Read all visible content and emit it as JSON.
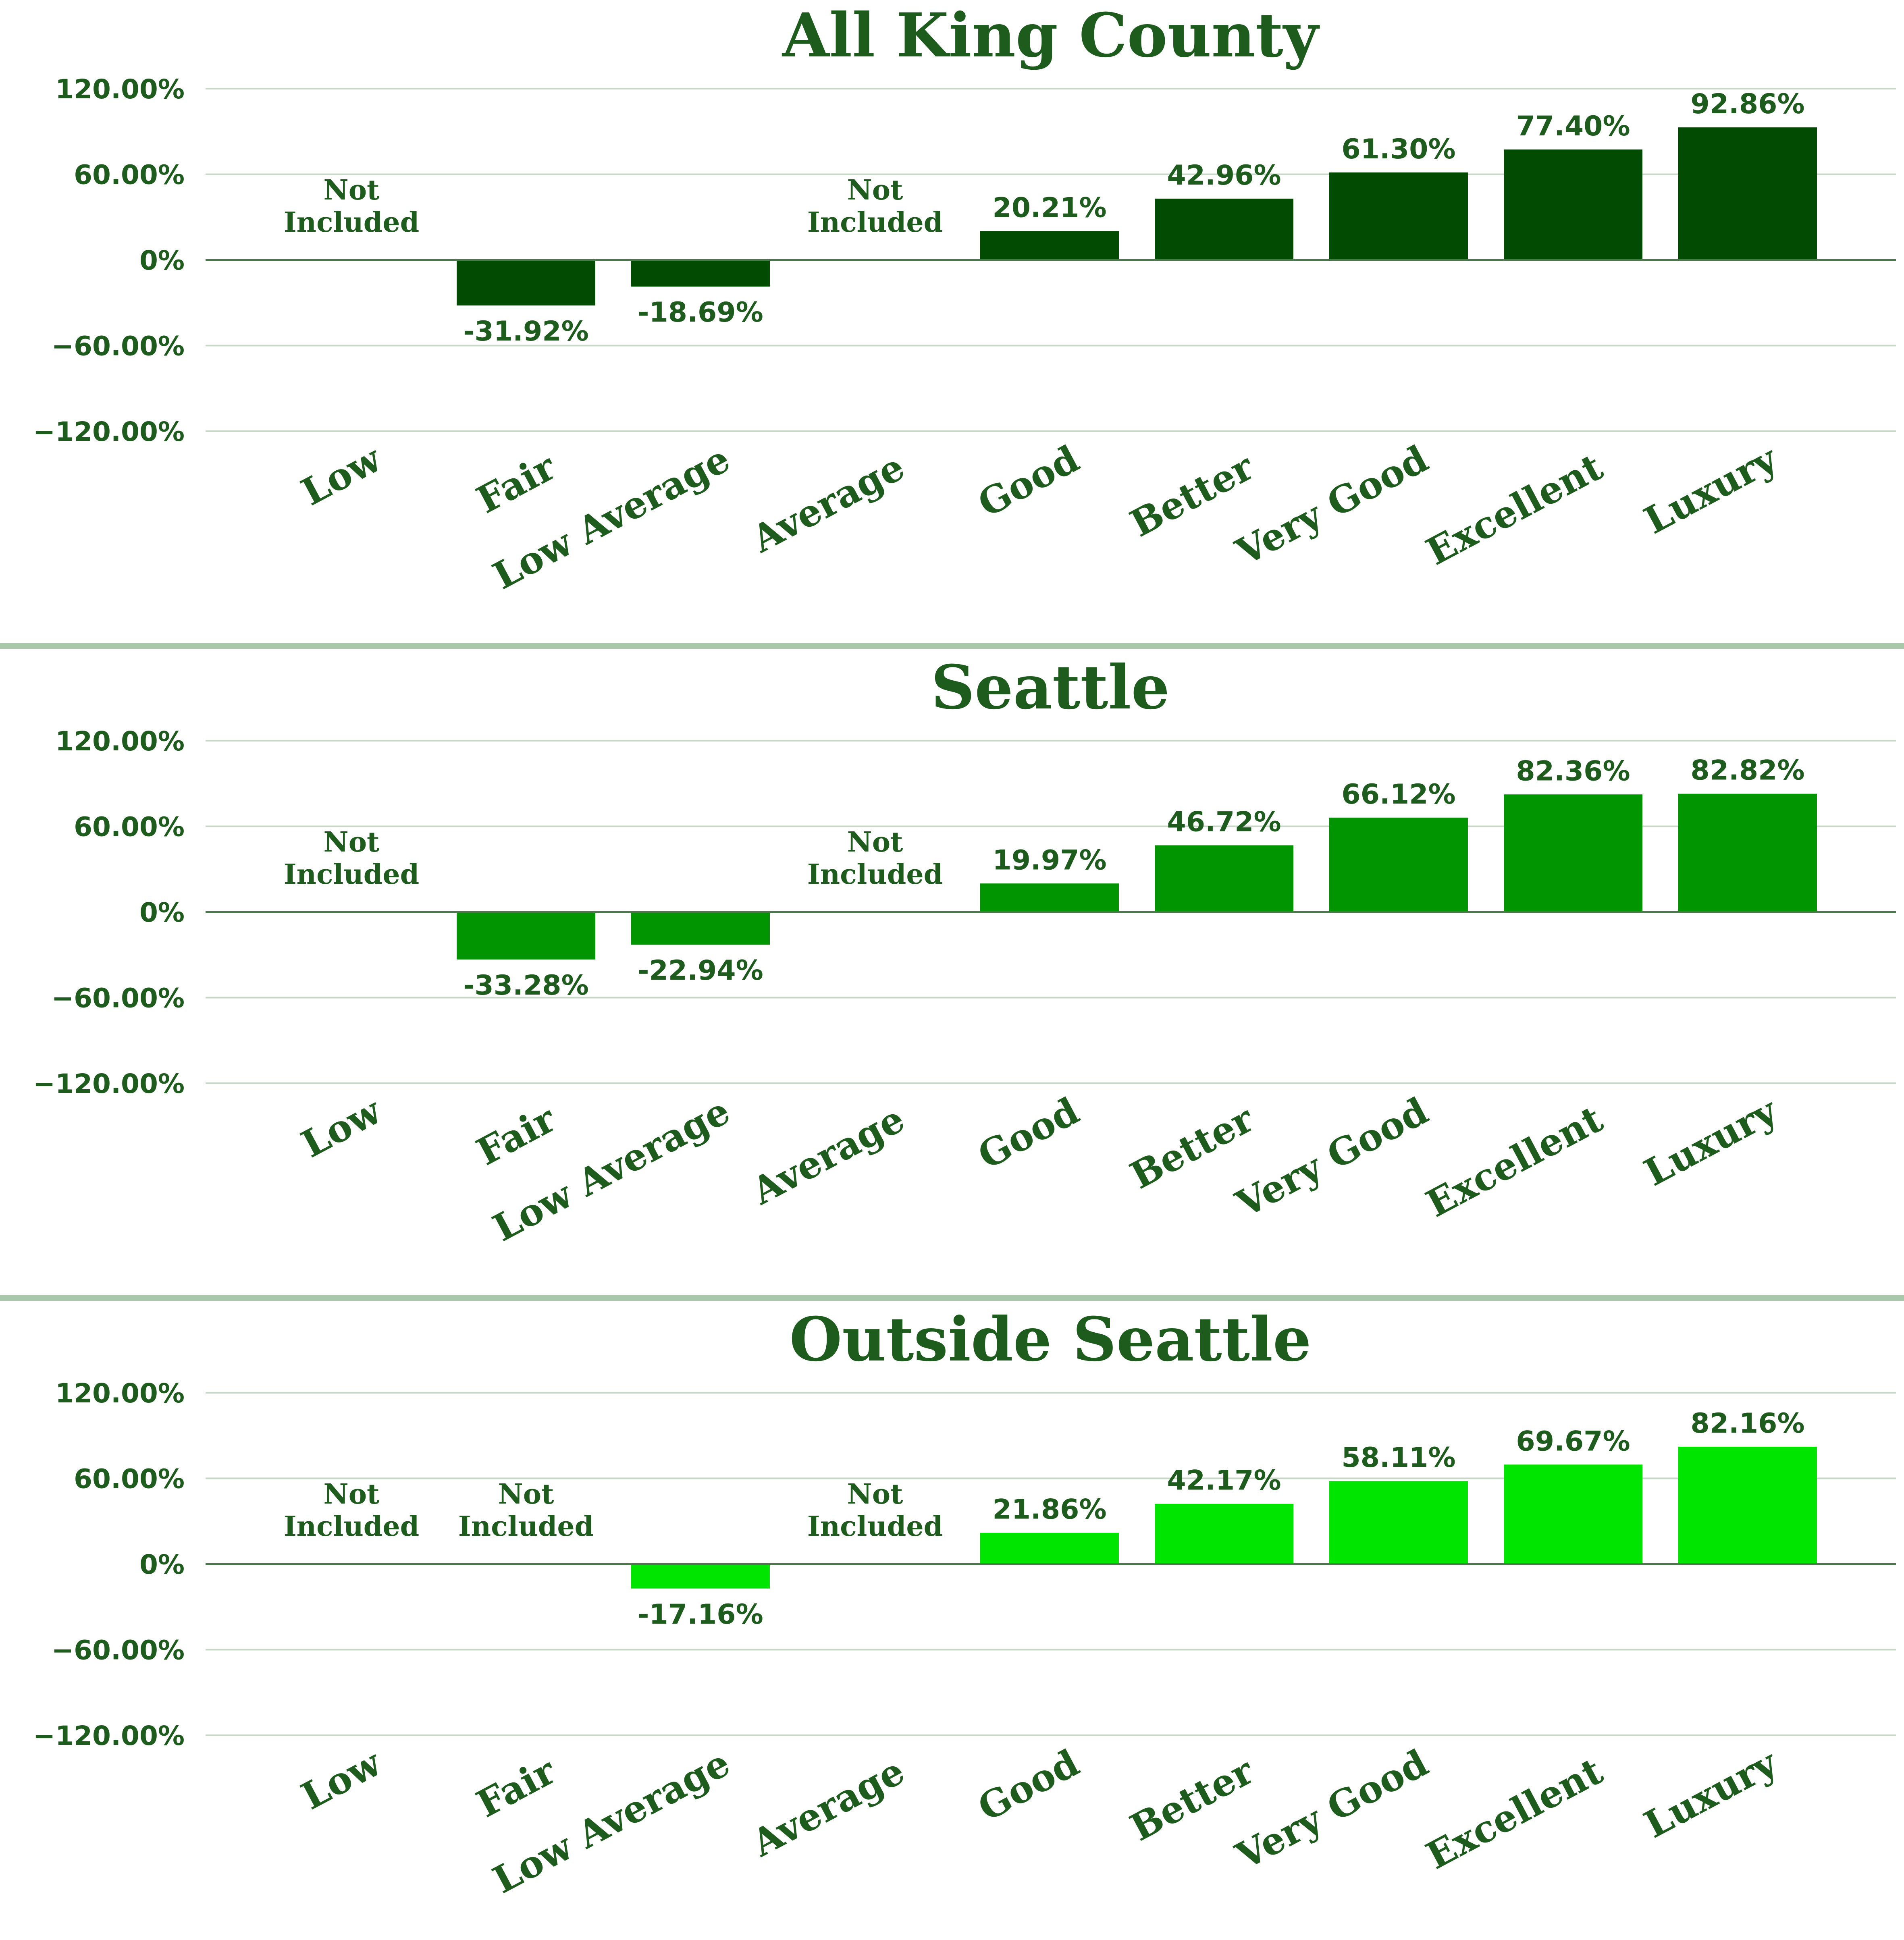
{
  "chart_data": [
    {
      "type": "bar",
      "title": "All King County",
      "categories": [
        "Low",
        "Fair",
        "Low Average",
        "Average",
        "Good",
        "Better",
        "Very Good",
        "Excellent",
        "Luxury"
      ],
      "values": [
        null,
        -31.92,
        -18.69,
        null,
        20.21,
        42.96,
        61.3,
        77.4,
        92.86
      ],
      "value_labels": [
        null,
        "-31.92%",
        "-18.69%",
        null,
        "20.21%",
        "42.96%",
        "61.30%",
        "77.40%",
        "92.86%"
      ],
      "missing_label": [
        "Not",
        "Included"
      ],
      "yticks": [
        "120.00%",
        "60.00%",
        "0%",
        "−60.00%",
        "−120.00%"
      ],
      "ylim": [
        -120,
        120
      ],
      "grid": true,
      "color": "#024b02"
    },
    {
      "type": "bar",
      "title": "Seattle",
      "categories": [
        "Low",
        "Fair",
        "Low Average",
        "Average",
        "Good",
        "Better",
        "Very Good",
        "Excellent",
        "Luxury"
      ],
      "values": [
        null,
        -33.28,
        -22.94,
        null,
        19.97,
        46.72,
        66.12,
        82.36,
        82.82
      ],
      "value_labels": [
        null,
        "-33.28%",
        "-22.94%",
        null,
        "19.97%",
        "46.72%",
        "66.12%",
        "82.36%",
        "82.82%"
      ],
      "missing_label": [
        "Not",
        "Included"
      ],
      "yticks": [
        "120.00%",
        "60.00%",
        "0%",
        "−60.00%",
        "−120.00%"
      ],
      "ylim": [
        -120,
        120
      ],
      "grid": true,
      "color": "#019601"
    },
    {
      "type": "bar",
      "title": "Outside Seattle",
      "categories": [
        "Low",
        "Fair",
        "Low Average",
        "Average",
        "Good",
        "Better",
        "Very Good",
        "Excellent",
        "Luxury"
      ],
      "values": [
        null,
        null,
        -17.16,
        null,
        21.86,
        42.17,
        58.11,
        69.67,
        82.16
      ],
      "value_labels": [
        null,
        null,
        "-17.16%",
        null,
        "21.86%",
        "42.17%",
        "58.11%",
        "69.67%",
        "82.16%"
      ],
      "missing_label": [
        "Not",
        "Included"
      ],
      "yticks": [
        "120.00%",
        "60.00%",
        "0%",
        "−60.00%",
        "−120.00%"
      ],
      "ylim": [
        -120,
        120
      ],
      "grid": true,
      "color": "#00e500"
    }
  ],
  "colors": {
    "text": "#1e5c1e",
    "grid": "#c8d8c8",
    "zero_line": "#4a7a4a",
    "separator": "#a9c8a9"
  }
}
